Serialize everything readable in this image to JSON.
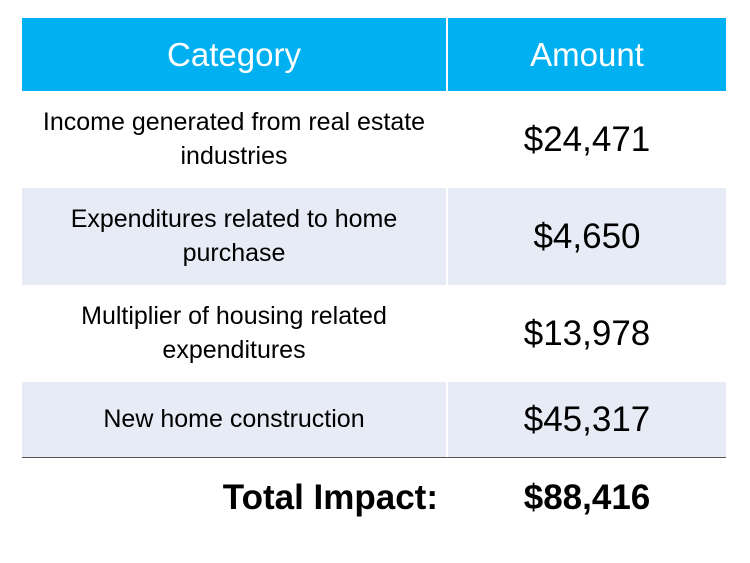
{
  "chart_data": {
    "type": "table",
    "columns": [
      "Category",
      "Amount"
    ],
    "rows": [
      {
        "category": "Income generated from real estate industries",
        "amount": "$24,471",
        "value": 24471
      },
      {
        "category": "Expenditures related to home purchase",
        "amount": "$4,650",
        "value": 4650
      },
      {
        "category": "Multiplier of housing related expenditures",
        "amount": "$13,978",
        "value": 13978
      },
      {
        "category": "New home construction",
        "amount": "$45,317",
        "value": 45317
      }
    ],
    "total": {
      "label": "Total Impact:",
      "amount": "$88,416",
      "value": 88416
    }
  },
  "colors": {
    "header_background": "#00b0f0",
    "header_text": "#ffffff",
    "alternate_row": "#e6ebf5"
  }
}
